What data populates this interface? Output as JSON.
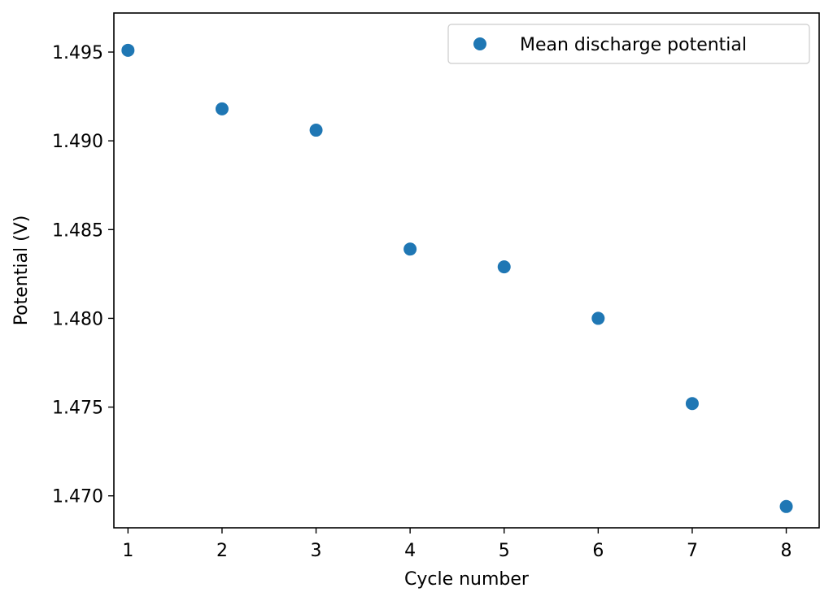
{
  "chart_data": {
    "type": "scatter",
    "title": "",
    "xlabel": "Cycle number",
    "ylabel": "Potential (V)",
    "xlim": [
      0.85,
      8.35
    ],
    "ylim": [
      1.4682,
      1.4972
    ],
    "x_ticks": [
      1,
      2,
      3,
      4,
      5,
      6,
      7,
      8
    ],
    "x_tick_labels": [
      "1",
      "2",
      "3",
      "4",
      "5",
      "6",
      "7",
      "8"
    ],
    "y_ticks": [
      1.47,
      1.475,
      1.48,
      1.485,
      1.49,
      1.495
    ],
    "y_tick_labels": [
      "1.470",
      "1.475",
      "1.480",
      "1.485",
      "1.490",
      "1.495"
    ],
    "grid": false,
    "legend_position": "top-right",
    "series": [
      {
        "name": "Mean discharge potential",
        "color": "#1f77b4",
        "x": [
          1,
          2,
          3,
          4,
          5,
          6,
          7,
          8
        ],
        "y": [
          1.4951,
          1.4918,
          1.4906,
          1.4839,
          1.4829,
          1.48,
          1.4752,
          1.4694
        ]
      }
    ]
  }
}
